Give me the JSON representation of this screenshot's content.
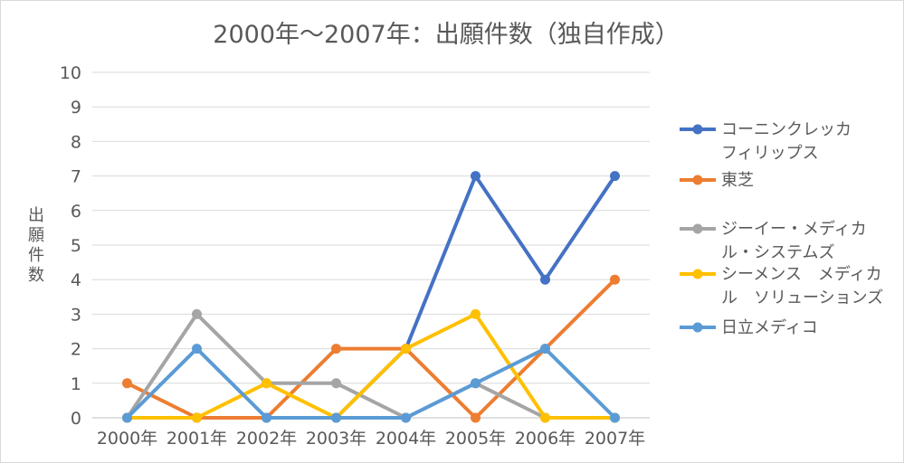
{
  "chart_data": {
    "type": "line",
    "title": "2000年～2007年：出願件数（独自作成）",
    "ylabel": "出願件数",
    "xlabel": "",
    "categories": [
      "2000年",
      "2001年",
      "2002年",
      "2003年",
      "2004年",
      "2005年",
      "2006年",
      "2007年"
    ],
    "ylim": [
      0,
      10
    ],
    "yticks": [
      0,
      1,
      2,
      3,
      4,
      5,
      6,
      7,
      8,
      9,
      10
    ],
    "grid": true,
    "legend_position": "right",
    "series": [
      {
        "name": "コーニンクレッカフィリップス",
        "legend_lines": [
          "コーニンクレッカ",
          "フィリップス"
        ],
        "color": "#4472c4",
        "values": [
          0,
          0,
          0,
          0,
          2,
          7,
          4,
          7
        ]
      },
      {
        "name": "東芝",
        "legend_lines": [
          "東芝"
        ],
        "color": "#ed7d31",
        "values": [
          1,
          0,
          0,
          2,
          2,
          0,
          2,
          4
        ]
      },
      {
        "name": "ジーイー・メディカル・システムズ",
        "legend_lines": [
          "ジーイー・メディカ",
          "ル・システムズ"
        ],
        "color": "#a5a5a5",
        "values": [
          0,
          3,
          1,
          1,
          0,
          1,
          0,
          0
        ]
      },
      {
        "name": "シーメンス メディカル ソリューションズ",
        "legend_lines": [
          "シーメンス　メディカ",
          "ル　ソリューションズ"
        ],
        "color": "#ffc000",
        "values": [
          0,
          0,
          1,
          0,
          2,
          3,
          0,
          0
        ]
      },
      {
        "name": "日立メディコ",
        "legend_lines": [
          "日立メディコ"
        ],
        "color": "#5b9bd5",
        "values": [
          0,
          2,
          0,
          0,
          0,
          1,
          2,
          0
        ]
      }
    ]
  }
}
